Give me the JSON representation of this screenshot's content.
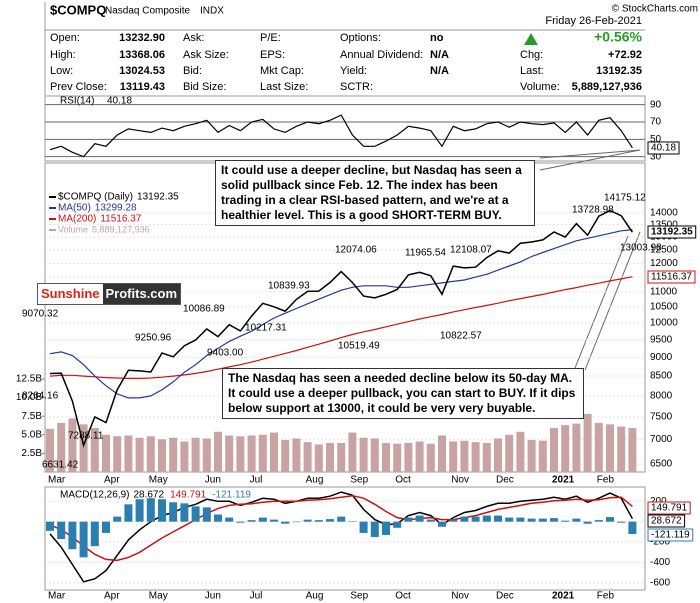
{
  "header": {
    "symbol": "$COMPQ",
    "name": "Nasdaq Composite",
    "exchange": "INDX",
    "copyright": "© StockCharts.com",
    "date": "Friday 26-Feb-2021",
    "quote": [
      [
        {
          "label": "Open:",
          "value": "13232.90"
        },
        {
          "label": "Ask:"
        },
        {
          "label": "P/E:"
        },
        {
          "label": "Options:",
          "value": "no"
        },
        {
          "value": "+0.56%"
        }
      ],
      [
        {
          "label": "High:",
          "value": "13368.06"
        },
        {
          "label": "Ask Size:"
        },
        {
          "label": "EPS:"
        },
        {
          "label": "Annual Dividend:",
          "value": "N/A"
        },
        {
          "label": "Chg:",
          "value": "+72.92"
        }
      ],
      [
        {
          "label": "Low:",
          "value": "13024.53"
        },
        {
          "label": "Bid:"
        },
        {
          "label": "Mkt Cap:"
        },
        {
          "label": "Yield:",
          "value": "N/A"
        },
        {
          "label": "Last:",
          "value": "13192.35"
        }
      ],
      [
        {
          "label": "Prev Close:",
          "value": "13119.43"
        },
        {
          "label": "Bid Size:"
        },
        {
          "label": "Last Size:"
        },
        {
          "label": "SCTR:"
        },
        {
          "label": "Volume:",
          "value": "5,889,127,936"
        }
      ]
    ]
  },
  "annotations": {
    "notes": [
      "It could use a deeper decline, but Nasdaq has seen a solid pullback since Feb. 12. The index has been trading in a clear RSI-based pattern, and we're at a healthier level. This is a good SHORT-TERM BUY.",
      "The Nasdaq has seen a needed decline below its 50-day MA. It could use a deeper pullback, you can start to BUY. If it dips below support at 13000, it could be very very buyable."
    ],
    "logo": [
      "Sunshine",
      "Profits.com"
    ],
    "price_points": [
      "9070.32",
      "8264.16",
      "6631.42",
      "7288.11",
      "9250.96",
      "10086.89",
      "9403.00",
      "10839.93",
      "10217.31",
      "12074.06",
      "10519.49",
      "11965.54",
      "12108.07",
      "10822.57",
      "13728.98",
      "14175.12",
      "13003.98"
    ]
  },
  "chart_data": [
    {
      "type": "line",
      "ylim": [
        25,
        100
      ],
      "yticks": [
        90,
        70,
        50,
        30
      ],
      "grid": true,
      "series": [
        {
          "name": "RSI(14)",
          "color": "#000000",
          "values": [
            38,
            42,
            35,
            30,
            45,
            42,
            55,
            62,
            60,
            58,
            63,
            60,
            65,
            68,
            72,
            58,
            66,
            60,
            70,
            73,
            62,
            58,
            65,
            70,
            68,
            72,
            78,
            55,
            42,
            42,
            48,
            55,
            65,
            63,
            60,
            42,
            65,
            60,
            62,
            68,
            70,
            64,
            70,
            68,
            67,
            69,
            58,
            70,
            55,
            72,
            75,
            60,
            40.18
          ]
        }
      ]
    },
    {
      "type": "line",
      "log_scale": true,
      "ylim": [
        6340,
        16300
      ],
      "yticks": [
        14000,
        13500,
        13000,
        12500,
        12000,
        11500,
        11000,
        10500,
        10000,
        9500,
        9000,
        8500,
        8000,
        7500,
        7000,
        6500
      ],
      "y2lim": [
        0,
        41.5
      ],
      "y2ticks": [
        {
          "value": 2.5,
          "label": "2.5B"
        },
        {
          "value": 5,
          "label": "5.0B"
        },
        {
          "value": 7.5,
          "label": "7.5B"
        },
        {
          "value": 10,
          "label": "10.0B"
        },
        {
          "value": 12.5,
          "label": "12.5B"
        }
      ],
      "grid": true,
      "categories": [
        "Mar",
        null,
        null,
        null,
        null,
        "Apr",
        null,
        null,
        null,
        "May",
        null,
        null,
        null,
        null,
        "Jun",
        null,
        null,
        null,
        "Jul",
        null,
        null,
        null,
        null,
        "Aug",
        null,
        null,
        null,
        "Sep",
        null,
        null,
        null,
        "Oct",
        null,
        null,
        null,
        null,
        "Nov",
        null,
        null,
        null,
        "Dec",
        null,
        null,
        null,
        null,
        "2021",
        null,
        null,
        null,
        "Feb",
        null,
        null,
        null
      ],
      "series": [
        {
          "name": "Volume",
          "color": "#c9a3a3",
          "type": "bar",
          "axis": "y2",
          "values": [
            5.8,
            6.6,
            7.2,
            6.4,
            5.9,
            5.0,
            4.8,
            4.9,
            4.6,
            4.8,
            4.4,
            4.6,
            4.1,
            4.6,
            4.5,
            5.4,
            4.9,
            4.8,
            4.9,
            5.0,
            5.3,
            4.3,
            4.5,
            4.0,
            3.7,
            3.9,
            3.9,
            5.3,
            4.6,
            4.5,
            3.9,
            3.8,
            3.9,
            4.1,
            3.8,
            4.9,
            4.1,
            4.2,
            4.0,
            3.9,
            4.5,
            5.0,
            5.4,
            4.3,
            4.2,
            5.9,
            6.3,
            6.5,
            7.8,
            6.6,
            6.4,
            6.1,
            5.889127936
          ]
        },
        {
          "name": "MA(200)",
          "color": "#cc1111",
          "values": [
            8500,
            8520,
            8520,
            8500,
            8480,
            8460,
            8450,
            8440,
            8440,
            8450,
            8470,
            8500,
            8530,
            8570,
            8620,
            8680,
            8740,
            8800,
            8870,
            8950,
            9030,
            9110,
            9190,
            9280,
            9370,
            9460,
            9560,
            9650,
            9730,
            9800,
            9880,
            9960,
            10040,
            10120,
            10190,
            10260,
            10340,
            10410,
            10480,
            10550,
            10620,
            10700,
            10770,
            10840,
            10910,
            10990,
            11070,
            11140,
            11220,
            11290,
            11370,
            11440,
            11516.37
          ]
        },
        {
          "name": "MA(50)",
          "color": "#1f3a9a",
          "values": [
            9100,
            9150,
            9050,
            8800,
            8500,
            8250,
            8050,
            7950,
            7950,
            8000,
            8150,
            8350,
            8600,
            8800,
            9050,
            9250,
            9450,
            9600,
            9750,
            9950,
            10150,
            10300,
            10450,
            10600,
            10750,
            10900,
            11050,
            11150,
            11200,
            11200,
            11200,
            11150,
            11150,
            11200,
            11250,
            11300,
            11350,
            11400,
            11500,
            11600,
            11750,
            11900,
            12050,
            12250,
            12400,
            12550,
            12700,
            12850,
            12950,
            13050,
            13150,
            13250,
            13299.28
          ]
        },
        {
          "name": "$COMPQ (Daily)",
          "color": "#000000",
          "values": [
            8567,
            8575,
            7875,
            6880,
            7502,
            7373,
            8153,
            8650,
            8634,
            8605,
            9121,
            9015,
            9325,
            9490,
            9815,
            9589,
            9946,
            9757,
            10208,
            10617,
            10503,
            10363,
            10745,
            11011,
            11019,
            11312,
            11695,
            11313,
            10854,
            10794,
            10914,
            11075,
            11580,
            11672,
            11548,
            10912,
            11895,
            11830,
            11855,
            12206,
            12464,
            12378,
            12756,
            12805,
            12888,
            13202,
            12998,
            13543,
            13071,
            13856,
            14095,
            13874,
            13192.35
          ]
        }
      ]
    },
    {
      "type": "line",
      "label": "MACD(12,26,9)",
      "ylim": [
        -670,
        340
      ],
      "yticks": [
        200,
        0,
        -200,
        -400,
        -600
      ],
      "grid": true,
      "categories": [
        "Mar",
        null,
        null,
        null,
        null,
        "Apr",
        null,
        null,
        null,
        "May",
        null,
        null,
        null,
        null,
        "Jun",
        null,
        null,
        null,
        "Jul",
        null,
        null,
        null,
        null,
        "Aug",
        null,
        null,
        null,
        "Sep",
        null,
        null,
        null,
        "Oct",
        null,
        null,
        null,
        null,
        "Nov",
        null,
        null,
        null,
        "Dec",
        null,
        null,
        null,
        null,
        "2021",
        null,
        null,
        null,
        "Feb",
        null,
        null,
        null
      ],
      "series": [
        {
          "color": "#000000",
          "values": [
            -120,
            -250,
            -420,
            -590,
            -560,
            -480,
            -330,
            -180,
            -80,
            0,
            60,
            90,
            140,
            170,
            220,
            200,
            200,
            160,
            190,
            230,
            220,
            180,
            200,
            230,
            230,
            250,
            290,
            260,
            120,
            20,
            -30,
            -20,
            60,
            90,
            60,
            -30,
            40,
            90,
            110,
            150,
            180,
            180,
            200,
            210,
            220,
            240,
            220,
            250,
            190,
            230,
            280,
            230,
            28.672
          ]
        },
        {
          "color": "#cc1111",
          "values": [
            -30,
            -80,
            -150,
            -240,
            -320,
            -370,
            -380,
            -350,
            -300,
            -230,
            -160,
            -100,
            -40,
            20,
            80,
            130,
            160,
            170,
            175,
            190,
            200,
            200,
            200,
            210,
            215,
            225,
            240,
            255,
            230,
            170,
            100,
            40,
            20,
            30,
            40,
            20,
            20,
            40,
            60,
            90,
            120,
            140,
            160,
            180,
            190,
            205,
            210,
            220,
            210,
            215,
            235,
            240,
            149.791
          ]
        },
        {
          "color": "#2a7fb0",
          "type": "bar",
          "values": [
            -90,
            -170,
            -270,
            -350,
            -240,
            -110,
            50,
            170,
            220,
            230,
            220,
            190,
            180,
            150,
            140,
            70,
            40,
            -10,
            15,
            40,
            20,
            -20,
            0,
            20,
            15,
            25,
            50,
            5,
            -110,
            -150,
            -130,
            -60,
            40,
            60,
            20,
            -50,
            20,
            50,
            50,
            60,
            60,
            40,
            40,
            30,
            30,
            35,
            10,
            30,
            -20,
            15,
            45,
            -10,
            -121.119
          ]
        }
      ]
    }
  ]
}
